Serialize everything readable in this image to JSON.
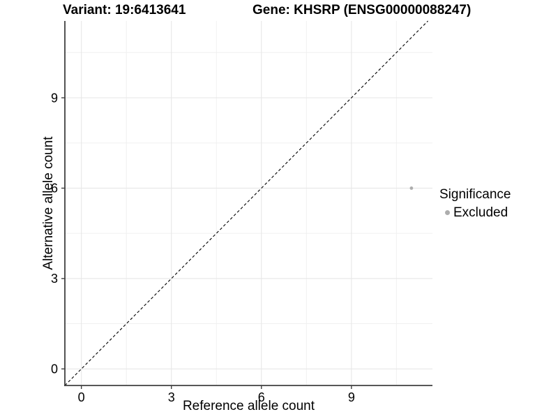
{
  "titles": {
    "variant": "Variant: 19:6413641",
    "gene": "Gene: KHSRP (ENSG00000088247)"
  },
  "chart_data": {
    "type": "scatter",
    "title_left": "Variant: 19:6413641",
    "title_right": "Gene: KHSRP (ENSG00000088247)",
    "xlabel": "Reference allele count",
    "ylabel": "Alternative allele count",
    "xlim": [
      -0.55,
      11.7
    ],
    "ylim": [
      -0.55,
      11.55
    ],
    "x_ticks": [
      0,
      3,
      6,
      9
    ],
    "y_ticks": [
      0,
      3,
      6,
      9
    ],
    "x_minor_gridlines": [
      1.5,
      4.5,
      7.5,
      10.5
    ],
    "y_minor_gridlines": [
      1.5,
      4.5,
      7.5,
      10.5
    ],
    "grid": "on",
    "identity_line": {
      "equation": "y = x",
      "style": "dashed",
      "color": "#000000"
    },
    "series": [
      {
        "name": "Excluded",
        "color": "#adadad",
        "points": [
          {
            "x": 11,
            "y": 6
          }
        ]
      }
    ],
    "legend": {
      "position": "right",
      "title": "Significance",
      "items": [
        {
          "label": "Excluded",
          "color": "#adadad"
        }
      ]
    }
  },
  "colors": {
    "background": "#ffffff",
    "grid_major": "#e7e7e7",
    "grid_minor": "#f0f0f0",
    "axis_line": "#404040",
    "tick_text": "#000000"
  }
}
